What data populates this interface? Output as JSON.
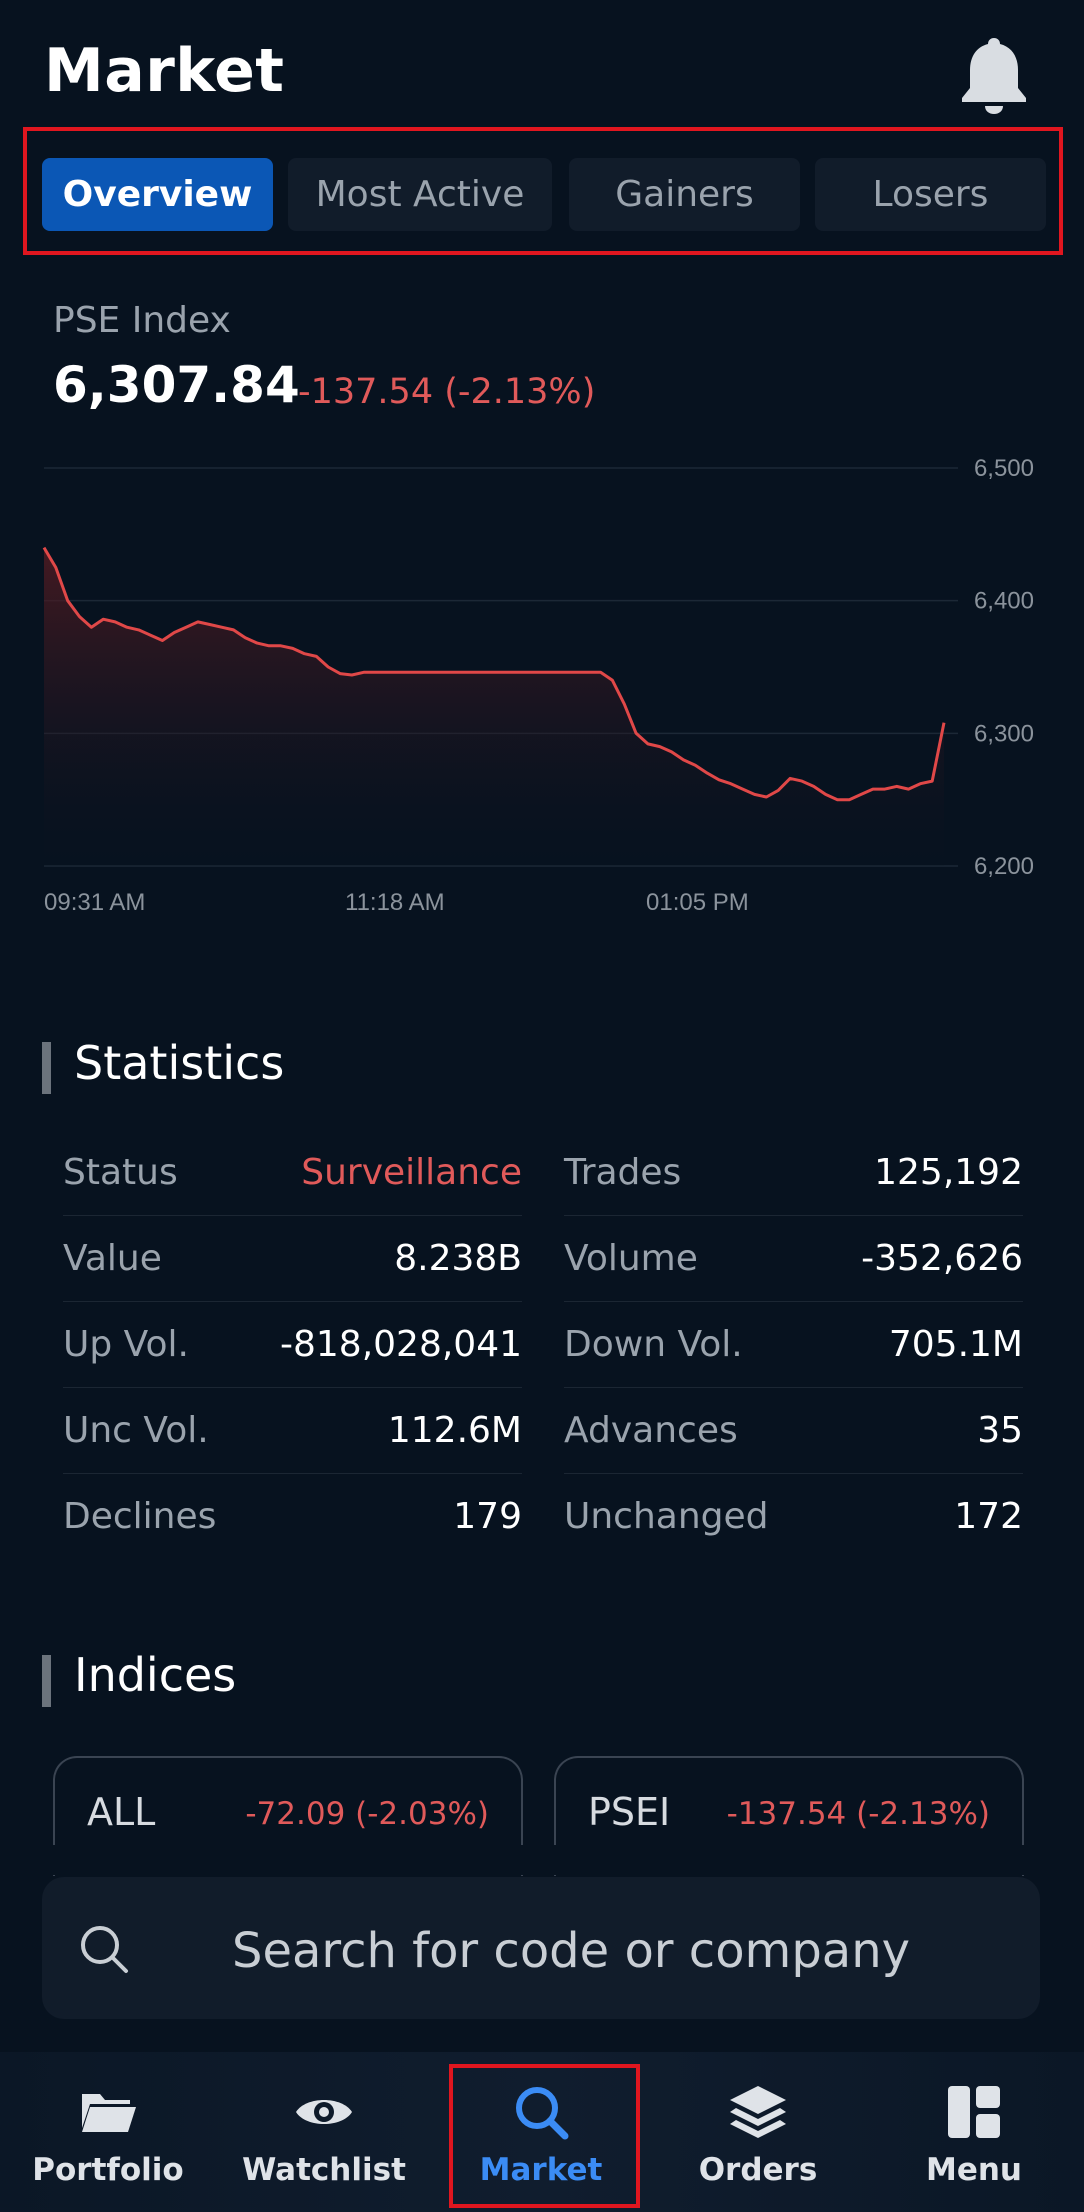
{
  "header": {
    "title": "Market",
    "bell_icon": "bell-icon"
  },
  "tabs": [
    {
      "label": "Overview",
      "active": true
    },
    {
      "label": "Most Active",
      "active": false
    },
    {
      "label": "Gainers",
      "active": false
    },
    {
      "label": "Losers",
      "active": false
    }
  ],
  "index": {
    "name": "PSE Index",
    "value": "6,307.84",
    "change": "-137.54 (-2.13%)"
  },
  "chart_data": {
    "type": "line",
    "title": "PSE Index",
    "y_ticks": [
      "6,500",
      "6,400",
      "6,300",
      "6,200"
    ],
    "x_ticks": [
      "09:31 AM",
      "11:18 AM",
      "01:05 PM"
    ],
    "ylim": [
      6200,
      6500
    ],
    "series": [
      {
        "name": "PSE Index",
        "color": "#e04848",
        "values": [
          6440,
          6425,
          6400,
          6388,
          6380,
          6386,
          6384,
          6380,
          6378,
          6374,
          6370,
          6376,
          6380,
          6384,
          6382,
          6380,
          6378,
          6372,
          6368,
          6366,
          6366,
          6364,
          6360,
          6358,
          6350,
          6345,
          6344,
          6346,
          6346,
          6346,
          6346,
          6346,
          6346,
          6346,
          6346,
          6346,
          6346,
          6346,
          6346,
          6346,
          6346,
          6346,
          6346,
          6346,
          6346,
          6346,
          6346,
          6346,
          6340,
          6322,
          6300,
          6292,
          6290,
          6286,
          6280,
          6276,
          6270,
          6265,
          6262,
          6258,
          6254,
          6252,
          6257,
          6266,
          6264,
          6260,
          6254,
          6250,
          6250,
          6254,
          6258,
          6258,
          6260,
          6258,
          6262,
          6264,
          6308
        ]
      }
    ]
  },
  "statistics": {
    "title": "Statistics",
    "left": [
      {
        "label": "Status",
        "value": "Surveillance",
        "warn": true
      },
      {
        "label": "Value",
        "value": "8.238B"
      },
      {
        "label": "Up Vol.",
        "value": "-818,028,041"
      },
      {
        "label": "Unc Vol.",
        "value": "112.6M"
      },
      {
        "label": "Declines",
        "value": "179"
      }
    ],
    "right": [
      {
        "label": "Trades",
        "value": "125,192"
      },
      {
        "label": "Volume",
        "value": "-352,626"
      },
      {
        "label": "Down Vol.",
        "value": "705.1M"
      },
      {
        "label": "Advances",
        "value": "35"
      },
      {
        "label": "Unchanged",
        "value": "172"
      }
    ]
  },
  "indices": {
    "title": "Indices",
    "cards": [
      {
        "name": "ALL",
        "change": "-72.09 (-2.03%)"
      },
      {
        "name": "PSEI",
        "change": "-137.54 (-2.13%)"
      }
    ]
  },
  "search": {
    "placeholder": "Search for code or company"
  },
  "nav": [
    {
      "label": "Portfolio",
      "icon": "folder-icon"
    },
    {
      "label": "Watchlist",
      "icon": "eye-icon"
    },
    {
      "label": "Market",
      "icon": "search-icon",
      "active": true
    },
    {
      "label": "Orders",
      "icon": "layers-icon"
    },
    {
      "label": "Menu",
      "icon": "dashboard-icon"
    }
  ],
  "colors": {
    "accent": "#0b57b5",
    "negative": "#e05a5a",
    "nav_active": "#3b8cf5",
    "highlight": "#e0161f"
  }
}
